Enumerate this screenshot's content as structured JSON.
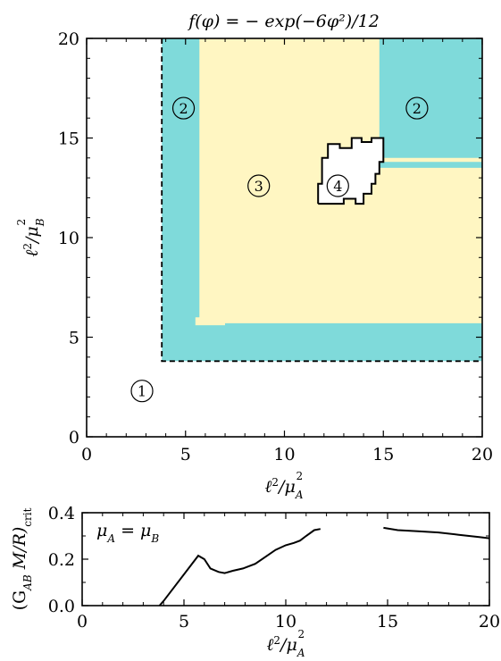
{
  "colors": {
    "region_2": "#7fdada",
    "region_3": "#fff6c2",
    "region_1": "#ffffff",
    "region_4": "#ffffff",
    "line": "#000000"
  },
  "chart_data": [
    {
      "type": "heatmap",
      "title": "f(φ) = − exp(−6φ²)/12",
      "xlabel": "ℓ²/μ_A²",
      "ylabel": "ℓ²/μ_B²",
      "xlim": [
        0,
        20
      ],
      "ylim": [
        0,
        20
      ],
      "xticks": [
        0,
        5,
        10,
        15,
        20
      ],
      "yticks": [
        0,
        5,
        10,
        15,
        20
      ],
      "region_labels": [
        {
          "label": "1",
          "x": 2.8,
          "y": 2.3
        },
        {
          "label": "2",
          "x": 4.9,
          "y": 16.5
        },
        {
          "label": "2",
          "x": 16.7,
          "y": 16.5
        },
        {
          "label": "3",
          "x": 8.7,
          "y": 12.6
        },
        {
          "label": "4",
          "x": 12.7,
          "y": 12.6
        }
      ],
      "regions": [
        {
          "label": "2",
          "polygon": [
            [
              3.8,
              3.8
            ],
            [
              20,
              3.8
            ],
            [
              20,
              20
            ],
            [
              3.8,
              20
            ]
          ]
        },
        {
          "label": "3",
          "polygon": [
            [
              5.7,
              5.7
            ],
            [
              20,
              5.7
            ],
            [
              20,
              13.5
            ],
            [
              14.8,
              13.5
            ],
            [
              14.8,
              20
            ],
            [
              5.7,
              20
            ]
          ]
        },
        {
          "label": "3",
          "polygon": [
            [
              5.5,
              5.6
            ],
            [
              7.0,
              5.6
            ],
            [
              7.0,
              6.0
            ],
            [
              5.5,
              6.0
            ]
          ]
        },
        {
          "label": "3",
          "polygon": [
            [
              13.5,
              13.8
            ],
            [
              20,
              13.8
            ],
            [
              20,
              14.0
            ],
            [
              13.5,
              14.0
            ]
          ]
        },
        {
          "label": "3",
          "polygon": [
            [
              13.85,
              14.4
            ],
            [
              14.1,
              14.4
            ],
            [
              14.1,
              20
            ],
            [
              13.85,
              20
            ]
          ]
        }
      ],
      "boundary_1": {
        "style": "dashed",
        "points": [
          [
            3.8,
            20
          ],
          [
            3.8,
            3.8
          ],
          [
            20,
            3.8
          ]
        ]
      },
      "region_4_boundary": [
        [
          11.7,
          11.7
        ],
        [
          11.7,
          12.7
        ],
        [
          11.9,
          12.7
        ],
        [
          11.9,
          14.0
        ],
        [
          12.2,
          14.0
        ],
        [
          12.2,
          14.7
        ],
        [
          12.8,
          14.7
        ],
        [
          12.8,
          14.5
        ],
        [
          13.4,
          14.5
        ],
        [
          13.4,
          15.0
        ],
        [
          13.9,
          15.0
        ],
        [
          13.9,
          14.8
        ],
        [
          14.4,
          14.8
        ],
        [
          14.4,
          15.0
        ],
        [
          15.0,
          15.0
        ],
        [
          15.0,
          13.8
        ],
        [
          14.8,
          13.8
        ],
        [
          14.8,
          13.2
        ],
        [
          14.6,
          13.2
        ],
        [
          14.6,
          12.7
        ],
        [
          14.4,
          12.7
        ],
        [
          14.4,
          12.2
        ],
        [
          14.0,
          12.2
        ],
        [
          14.0,
          11.7
        ],
        [
          13.6,
          11.7
        ],
        [
          13.6,
          11.95
        ],
        [
          13.0,
          11.95
        ],
        [
          13.0,
          11.7
        ],
        [
          11.7,
          11.7
        ]
      ]
    },
    {
      "type": "line",
      "xlabel": "ℓ²/μ_A²",
      "ylabel": "(G_AB M/R)_crit",
      "annotation": "μ_A = μ_B",
      "xlim": [
        0,
        20
      ],
      "ylim": [
        0,
        0.4
      ],
      "xticks": [
        0,
        5,
        10,
        15,
        20
      ],
      "yticks": [
        0.0,
        0.2,
        0.4
      ],
      "series": [
        {
          "segment": 1,
          "x": [
            3.8,
            4.0,
            5.7,
            6.0,
            6.3,
            6.7,
            7.0,
            7.4,
            7.9,
            8.5,
            9.0,
            9.5,
            10.0,
            10.4,
            10.7,
            11.0,
            11.4,
            11.7
          ],
          "y": [
            0.0,
            0.02,
            0.215,
            0.2,
            0.16,
            0.145,
            0.14,
            0.15,
            0.16,
            0.18,
            0.21,
            0.24,
            0.26,
            0.27,
            0.28,
            0.3,
            0.325,
            0.33
          ]
        },
        {
          "segment": 2,
          "x": [
            14.8,
            15.5,
            16.5,
            17.5,
            18.5,
            19.5,
            20.0
          ],
          "y": [
            0.335,
            0.325,
            0.32,
            0.315,
            0.305,
            0.295,
            0.29
          ]
        }
      ]
    }
  ],
  "text": {
    "title": "f(φ) = − exp(−6φ²)/12",
    "top_xlabel_main": "ℓ",
    "top_xlabel_sup": "2",
    "top_xlabel_sep": "/μ",
    "top_xlabel_sub": "A",
    "top_xlabel_sup2": "2",
    "top_ylabel_main": "ℓ",
    "top_ylabel_sup": "2",
    "top_ylabel_sep": "/μ",
    "top_ylabel_sub": "B",
    "top_ylabel_sup2": "2",
    "bot_xlabel_main": "ℓ",
    "bot_xlabel_sup": "2",
    "bot_xlabel_sep": "/μ",
    "bot_xlabel_sub": "A",
    "bot_xlabel_sup2": "2",
    "bot_ylabel_main": "(G",
    "bot_ylabel_sub": "AB",
    "bot_ylabel_rest": " M/R)",
    "bot_ylabel_sub2": "crit",
    "annotation_main": "μ",
    "annotation_sub": "A",
    "annotation_mid": " = μ",
    "annotation_sub2": "B",
    "top_xticks": [
      "0",
      "5",
      "10",
      "15",
      "20"
    ],
    "top_yticks": [
      "0",
      "5",
      "10",
      "15",
      "20"
    ],
    "bot_xticks": [
      "0",
      "5",
      "10",
      "15",
      "20"
    ],
    "bot_yticks": [
      "0.0",
      "0.2",
      "0.4"
    ]
  }
}
